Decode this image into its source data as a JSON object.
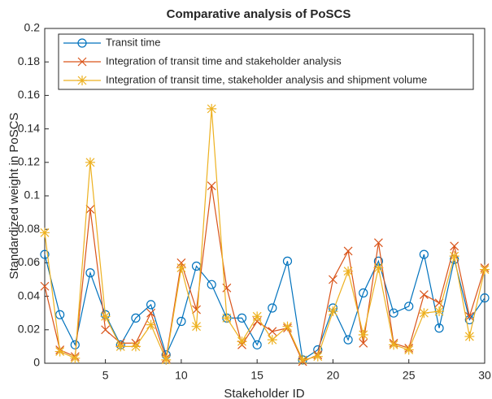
{
  "chart_data": {
    "type": "line",
    "title": "Comparative analysis of PoSCS",
    "x_label": "Stakeholder ID",
    "y_label": "Standardized weight in PoSCS",
    "x": [
      1,
      2,
      3,
      4,
      5,
      6,
      7,
      8,
      9,
      10,
      11,
      12,
      13,
      14,
      15,
      16,
      17,
      18,
      19,
      20,
      21,
      22,
      23,
      24,
      25,
      26,
      27,
      28,
      29,
      30
    ],
    "xlim": [
      1,
      30
    ],
    "xticks": [
      5,
      10,
      15,
      20,
      25,
      30
    ],
    "ylim": [
      0,
      0.2
    ],
    "yticks": [
      0,
      0.02,
      0.04,
      0.06,
      0.08,
      0.1,
      0.12,
      0.14,
      0.16,
      0.18,
      0.2
    ],
    "grid": false,
    "legend": "top-left",
    "series": [
      {
        "name": "Transit time",
        "color": "#0072bd",
        "marker": "circle",
        "values": [
          0.065,
          0.029,
          0.011,
          0.054,
          0.029,
          0.011,
          0.027,
          0.035,
          0.005,
          0.025,
          0.058,
          0.047,
          0.027,
          0.027,
          0.011,
          0.033,
          0.061,
          0.002,
          0.008,
          0.033,
          0.014,
          0.042,
          0.061,
          0.03,
          0.034,
          0.065,
          0.021,
          0.062,
          0.026,
          0.039
        ]
      },
      {
        "name": "Integration of transit time and stakeholder analysis",
        "color": "#d95319",
        "marker": "x",
        "values": [
          0.046,
          0.008,
          0.004,
          0.092,
          0.02,
          0.012,
          0.012,
          0.03,
          0.003,
          0.06,
          0.032,
          0.106,
          0.045,
          0.011,
          0.025,
          0.019,
          0.021,
          0.001,
          0.005,
          0.05,
          0.067,
          0.012,
          0.072,
          0.012,
          0.009,
          0.041,
          0.036,
          0.07,
          0.028,
          0.057
        ]
      },
      {
        "name": "Integration of transit time, stakeholder analysis and shipment volume",
        "color": "#edb120",
        "marker": "star",
        "values": [
          0.078,
          0.007,
          0.003,
          0.12,
          0.028,
          0.01,
          0.01,
          0.023,
          0.002,
          0.057,
          0.022,
          0.152,
          0.027,
          0.013,
          0.028,
          0.014,
          0.022,
          0.002,
          0.004,
          0.031,
          0.055,
          0.017,
          0.057,
          0.011,
          0.008,
          0.03,
          0.031,
          0.064,
          0.016,
          0.056
        ]
      }
    ]
  }
}
